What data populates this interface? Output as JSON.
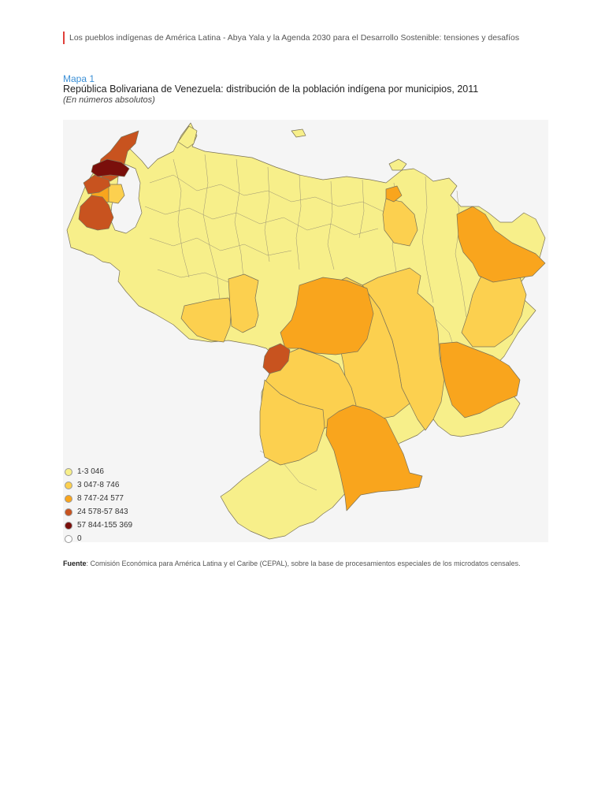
{
  "header": {
    "running_title": "Los pueblos indígenas de América Latina - Abya Yala y la Agenda 2030 para el Desarrollo Sostenible: tensiones y desafíos"
  },
  "map": {
    "label": "Mapa 1",
    "title": "República Bolivariana de Venezuela: distribución de la población indígena por municipios, 2011",
    "subtitle": "(En números absolutos)",
    "legend": [
      {
        "label": "1-3 046",
        "color": "#f7ef8a"
      },
      {
        "label": "3 047-8 746",
        "color": "#fcd04f"
      },
      {
        "label": "8 747-24 577",
        "color": "#f9a51d"
      },
      {
        "label": "24 578-57 843",
        "color": "#c8531f"
      },
      {
        "label": "57 844-155 369",
        "color": "#7a0f0b"
      },
      {
        "label": "0",
        "color": "#ffffff"
      }
    ],
    "colors": {
      "background": "#f5f5f5",
      "border": "#7a7257"
    }
  },
  "source": {
    "label": "Fuente",
    "text": ": Comisión Económica para América Latina y el Caribe (CEPAL), sobre la base de procesamientos especiales de los microdatos censales."
  }
}
